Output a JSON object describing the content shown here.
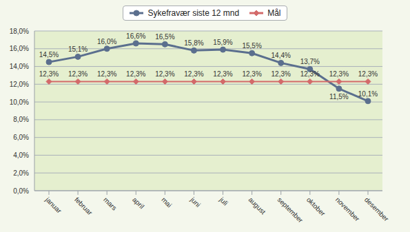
{
  "chart_data": {
    "type": "line",
    "categories": [
      "januar",
      "februar",
      "mars",
      "april",
      "mai",
      "juni",
      "juli",
      "august",
      "september",
      "oktober",
      "november",
      "desember"
    ],
    "series": [
      {
        "name": "Sykefravær siste 12 mnd",
        "color": "#5b6f8e",
        "marker": "circle",
        "values": [
          14.5,
          15.1,
          16.0,
          16.6,
          16.5,
          15.8,
          15.9,
          15.5,
          14.4,
          13.7,
          11.5,
          10.1
        ],
        "value_labels": [
          "14,5%",
          "15,1%",
          "16,0%",
          "16,6%",
          "16,5%",
          "15,8%",
          "15,9%",
          "15,5%",
          "14,4%",
          "13,7%",
          "11,5%",
          "10,1%"
        ]
      },
      {
        "name": "Mål",
        "color": "#d36a6a",
        "marker": "diamond",
        "values": [
          12.3,
          12.3,
          12.3,
          12.3,
          12.3,
          12.3,
          12.3,
          12.3,
          12.3,
          12.3,
          12.3,
          12.3
        ],
        "value_labels": [
          "12,3%",
          "12,3%",
          "12,3%",
          "12,3%",
          "12,3%",
          "12,3%",
          "12,3%",
          "12,3%",
          "12,3%",
          "12,3%",
          "12,3%",
          "12,3%"
        ]
      }
    ],
    "ylim": [
      0,
      18
    ],
    "yticks": [
      {
        "value": 0,
        "label": "0,0%"
      },
      {
        "value": 2,
        "label": "2,0%"
      },
      {
        "value": 4,
        "label": "4,0%"
      },
      {
        "value": 6,
        "label": "6,0%"
      },
      {
        "value": 8,
        "label": "8,0%"
      },
      {
        "value": 10,
        "label": "10,0%"
      },
      {
        "value": 12,
        "label": "12,0%"
      },
      {
        "value": 14,
        "label": "14,0%"
      },
      {
        "value": 16,
        "label": "16,0%"
      },
      {
        "value": 18,
        "label": "18,0%"
      }
    ],
    "grid": true,
    "legend": "top",
    "data_labels": true
  }
}
